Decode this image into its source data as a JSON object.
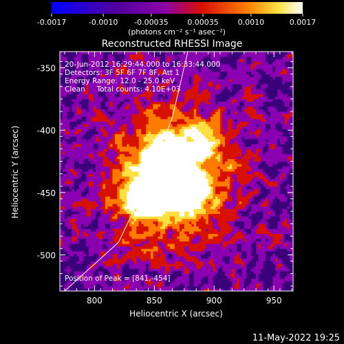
{
  "chart_data": {
    "type": "heatmap",
    "title": "Reconstructed RHESSI Image",
    "xlabel": "Heliocentric X (arcsec)",
    "ylabel": "Heliocentric Y (arcsec)",
    "xlim": [
      771,
      966
    ],
    "ylim": [
      -529,
      -337
    ],
    "x_ticks": [
      800,
      850,
      900,
      950
    ],
    "y_ticks": [
      -350,
      -400,
      -450,
      -500
    ],
    "colorbar": {
      "range": [
        -0.0017,
        0.0017
      ],
      "ticks": [
        "-0.0017",
        "-0.0010",
        "-0.00035",
        "0.00035",
        "0.0010",
        "0.0017"
      ],
      "label": "(photons cm⁻² s⁻¹ asec⁻²)"
    },
    "annotations": [
      "20-Jun-2012 16:29:44.000 to 16:33:44.000",
      "Detectors: 3F 5F 6F 7F 8F, Att 1",
      "Energy Range: 12.0 - 25.0 keV",
      "Clean     Total counts: 4.10E+03"
    ],
    "peak_text": "Position of Peak = [841,-454]",
    "peak": [
      841,
      -454
    ],
    "limb_points": [
      [
        775,
        -529
      ],
      [
        820,
        -490
      ],
      [
        845,
        -440
      ],
      [
        865,
        -390
      ],
      [
        878,
        -337
      ]
    ],
    "sources": [
      {
        "x": 842,
        "y": -452,
        "intensity": 1.0
      },
      {
        "x": 876,
        "y": -450,
        "intensity": 0.92
      },
      {
        "x": 858,
        "y": -418,
        "intensity": 0.55
      },
      {
        "x": 888,
        "y": -410,
        "intensity": 0.45
      }
    ],
    "colors": [
      "#0000ff",
      "#3a007a",
      "#8a00b0",
      "#d81000",
      "#ff7a00",
      "#ffe040",
      "#ffffff"
    ]
  },
  "footer": {
    "date": "11-May-2022 19:25"
  }
}
